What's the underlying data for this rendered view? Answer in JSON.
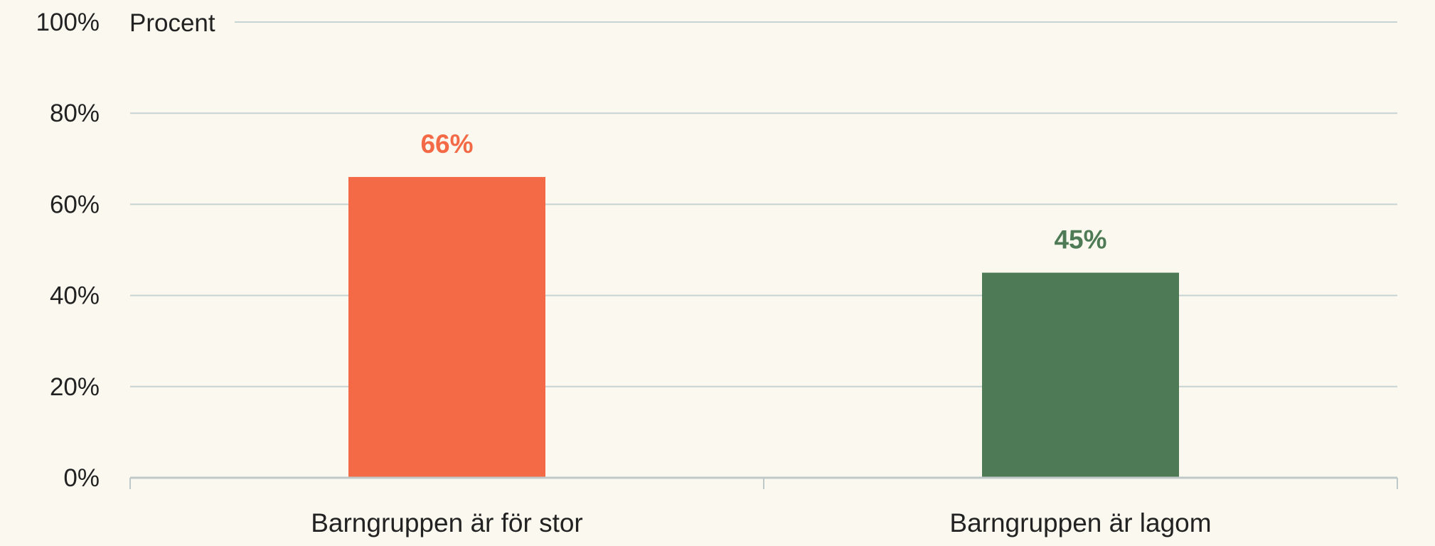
{
  "chart_data": {
    "type": "bar",
    "categories": [
      "Barngruppen är för stor",
      "Barngruppen är lagom"
    ],
    "values": [
      66,
      45
    ],
    "value_labels": [
      "66%",
      "45%"
    ],
    "colors": [
      "#f46a47",
      "#4e7a55"
    ],
    "ylabel": "Procent",
    "ylim": [
      0,
      100
    ],
    "yticks": [
      0,
      20,
      40,
      60,
      80,
      100
    ],
    "ytick_labels": [
      "0%",
      "20%",
      "40%",
      "60%",
      "80%",
      "100%"
    ],
    "grid": true,
    "legend": "none"
  }
}
